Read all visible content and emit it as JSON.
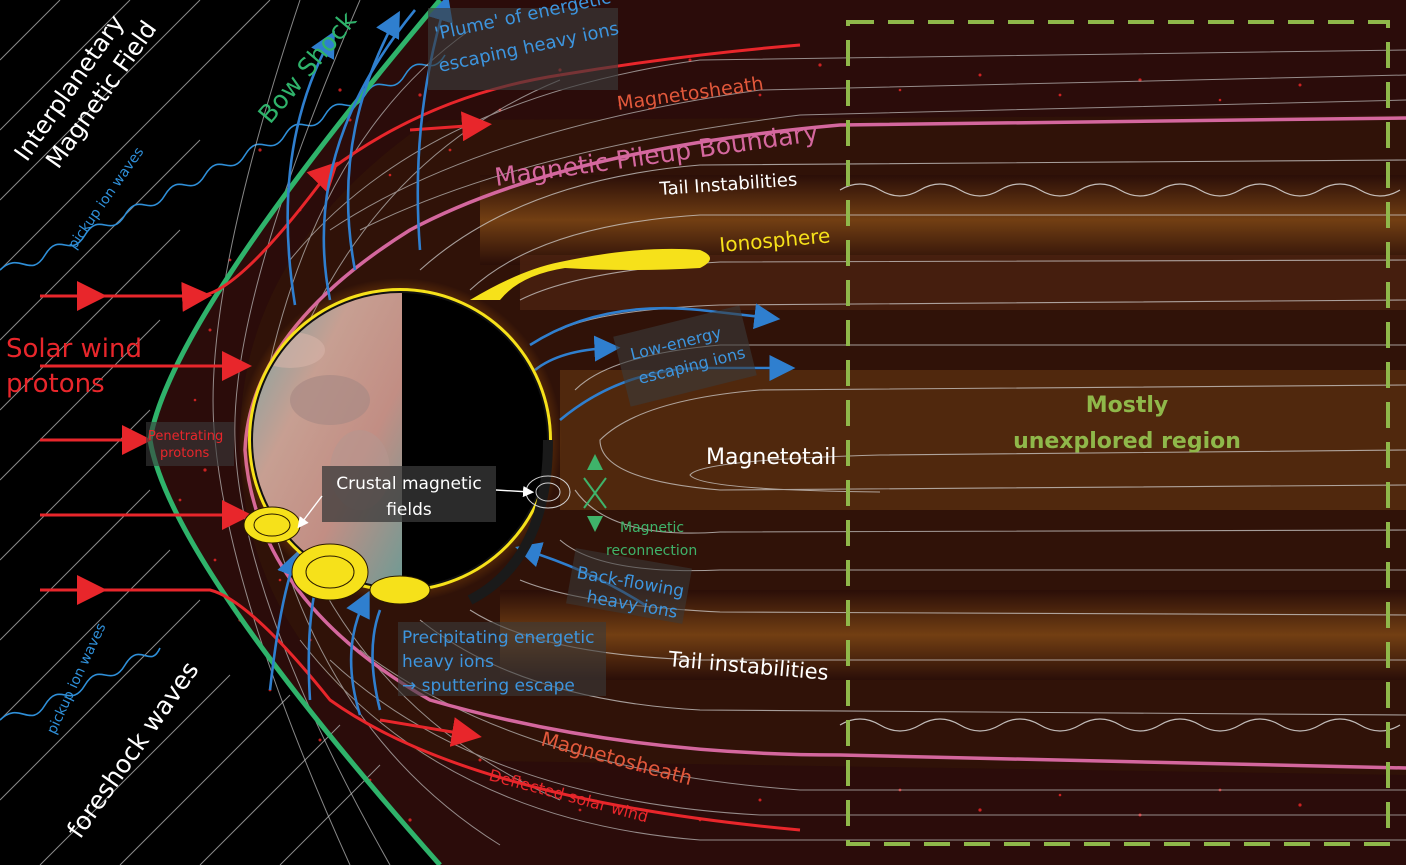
{
  "labels": {
    "imf": [
      "Interplanetary",
      "Magnetic Field"
    ],
    "pickup_upper": "pickup ion waves",
    "pickup_lower": "pickup ion waves",
    "bow_shock": "Bow Shock",
    "plume": [
      "'Plume' of energetic",
      "escaping heavy ions"
    ],
    "magnetosheath_top": "Magnetosheath",
    "mpb": "Magnetic Pileup Boundary",
    "tail_instabilities_top": "Tail Instabilities",
    "ionosphere": "Ionosphere",
    "solar_wind": [
      "Solar wind",
      "protons"
    ],
    "penetrating": [
      "Penetrating",
      "protons"
    ],
    "low_energy": [
      "Low-energy",
      "escaping ions"
    ],
    "magnetotail": "Magnetotail",
    "unexplored": [
      "Mostly",
      "unexplored region"
    ],
    "crustal": [
      "Crustal magnetic",
      "fields"
    ],
    "reconnection": [
      "Magnetic",
      "reconnection"
    ],
    "back_flowing": [
      "Back-flowing",
      "heavy ions"
    ],
    "precipitating": [
      "Precipitating energetic",
      "heavy ions",
      "→ sputtering escape"
    ],
    "tail_instabilities_bottom": "Tail instabilities",
    "foreshock": "foreshock waves",
    "magnetosheath_bottom": "Magnetosheath",
    "deflected": "Deflected solar wind"
  },
  "colors": {
    "bow_shock": "#2fb36b",
    "mpb": "#d4679e",
    "solar_wind": "#e8262b",
    "ion_flow": "#2f7fcf",
    "ionosphere": "#f6e11a",
    "unexplored_box": "#8fb84a",
    "magnetosheath_text": "#e2583b",
    "tail_glow": "#8a4a12"
  }
}
